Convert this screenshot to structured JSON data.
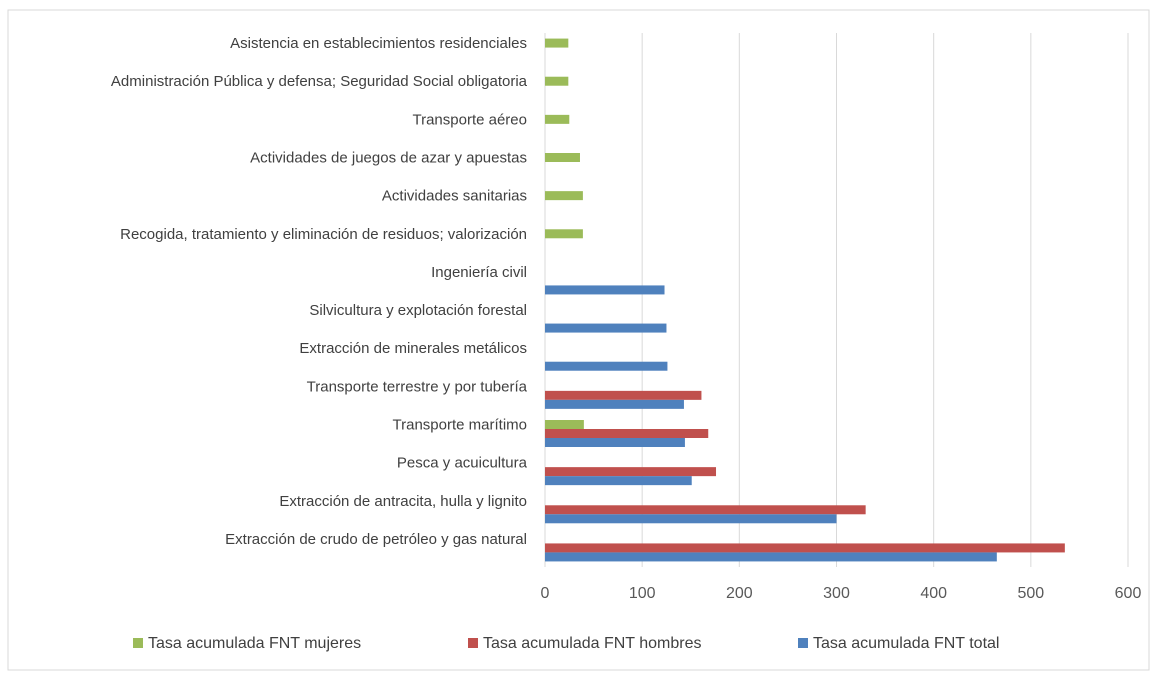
{
  "chart_data": {
    "type": "barh",
    "categories": [
      "Extracción de crudo de petróleo y gas natural",
      "Extracción de antracita, hulla y lignito",
      "Pesca y acuicultura",
      "Transporte marítimo",
      "Transporte terrestre y por tubería",
      "Extracción de minerales metálicos",
      "Silvicultura y explotación forestal",
      "Ingeniería civil",
      "Recogida, tratamiento y eliminación de residuos; valorización",
      "Actividades sanitarias",
      "Actividades de juegos de azar y apuestas",
      "Transporte aéreo",
      "Administración Pública y defensa; Seguridad Social obligatoria",
      "Asistencia en establecimientos residenciales"
    ],
    "series": [
      {
        "name": "Tasa acumulada FNT mujeres",
        "color": "#9bbb59",
        "values": [
          null,
          null,
          null,
          40,
          null,
          null,
          null,
          null,
          39,
          39,
          36,
          25,
          24,
          24
        ]
      },
      {
        "name": "Tasa acumulada FNT hombres",
        "color": "#c0504d",
        "values": [
          535,
          330,
          176,
          168,
          161,
          null,
          null,
          null,
          null,
          null,
          null,
          null,
          null,
          null
        ]
      },
      {
        "name": "Tasa acumulada FNT total",
        "color": "#4f81bd",
        "values": [
          465,
          300,
          151,
          144,
          143,
          126,
          125,
          123,
          null,
          null,
          null,
          null,
          null,
          null
        ]
      }
    ],
    "xlim": [
      0,
      600
    ],
    "xticks": [
      0,
      100,
      200,
      300,
      400,
      500,
      600
    ],
    "grid": true,
    "legend": "bottom"
  }
}
